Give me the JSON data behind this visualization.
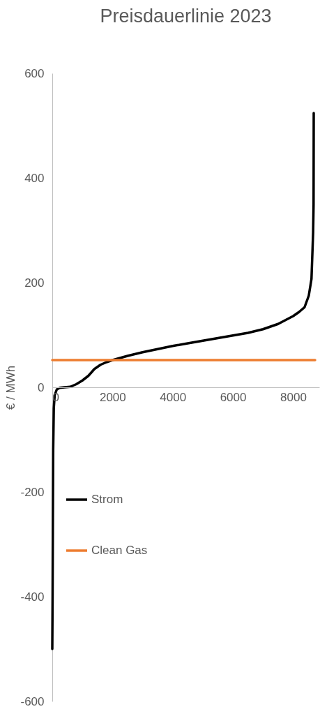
{
  "chart_data": {
    "type": "line",
    "title": "Preisdauerlinie 2023",
    "ylabel": "€ / MWh",
    "xlim": [
      0,
      8870
    ],
    "xticks": [
      0,
      2000,
      4000,
      6000,
      8000
    ],
    "ylim": [
      -600,
      600
    ],
    "yticks": [
      -600,
      -400,
      -200,
      0,
      200,
      400,
      600
    ],
    "grid": false,
    "legend": "left",
    "series": [
      {
        "name": "Strom",
        "color": "#000000",
        "x": [
          0,
          10,
          20,
          30,
          50,
          80,
          150,
          250,
          400,
          600,
          800,
          1000,
          1200,
          1400,
          1600,
          1800,
          2000,
          2500,
          3000,
          3500,
          4000,
          4500,
          5000,
          5500,
          6000,
          6500,
          7000,
          7500,
          8000,
          8200,
          8380,
          8520,
          8610,
          8665,
          8680,
          8685
        ],
        "values": [
          -500,
          -400,
          -250,
          -120,
          -40,
          -15,
          -4,
          -1,
          0,
          1,
          6,
          13,
          22,
          35,
          43,
          48,
          52,
          60,
          67,
          73,
          79,
          84,
          89,
          94,
          99,
          104,
          111,
          121,
          136,
          144,
          153,
          175,
          207,
          296,
          350,
          524
        ]
      },
      {
        "name": "Clean Gas",
        "color": "#ed7d31",
        "x": [
          0,
          8730
        ],
        "values": [
          52,
          52
        ]
      }
    ]
  }
}
